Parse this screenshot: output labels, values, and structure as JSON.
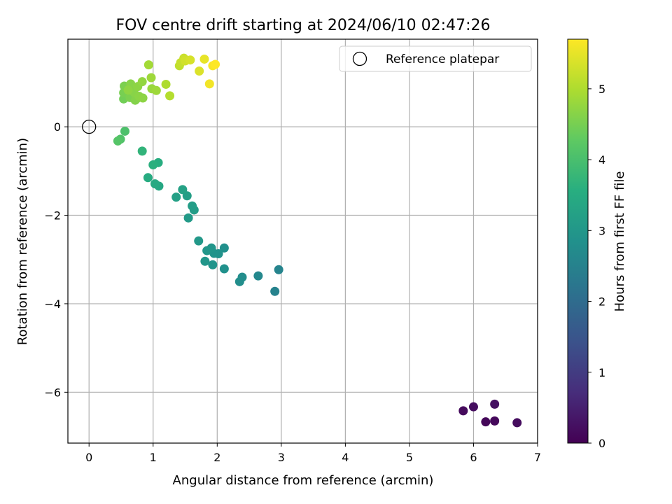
{
  "chart_data": {
    "type": "scatter",
    "title": "FOV centre drift starting at 2024/06/10 02:47:26",
    "xlabel": "Angular distance from reference (arcmin)",
    "ylabel": "Rotation from reference (arcmin)",
    "xlim": [
      -0.33,
      7.0
    ],
    "ylim": [
      -7.15,
      1.98
    ],
    "xticks": [
      0,
      1,
      2,
      3,
      4,
      5,
      6,
      7
    ],
    "yticks": [
      -6,
      -4,
      -2,
      0
    ],
    "xtick_labels": [
      "0",
      "1",
      "2",
      "3",
      "4",
      "5",
      "6",
      "7"
    ],
    "ytick_labels": [
      "−6",
      "−4",
      "−2",
      "0"
    ],
    "grid": true,
    "colormap": "viridis",
    "colorbar": {
      "label": "Hours from first FF file",
      "range": [
        0,
        5.7
      ],
      "ticks": [
        0,
        1,
        2,
        3,
        4,
        5
      ],
      "tick_labels": [
        "0",
        "1",
        "2",
        "3",
        "4",
        "5"
      ]
    },
    "legend": {
      "position": "top-right",
      "entries": [
        {
          "label": "Reference platepar",
          "marker": "open-circle"
        }
      ]
    },
    "reference_point": {
      "x": 0,
      "y": 0
    },
    "points": [
      {
        "x": 5.84,
        "y": -6.42,
        "c": 0.15
      },
      {
        "x": 6.0,
        "y": -6.33,
        "c": 0.2
      },
      {
        "x": 6.33,
        "y": -6.27,
        "c": 0.25
      },
      {
        "x": 6.19,
        "y": -6.67,
        "c": 0.1
      },
      {
        "x": 6.33,
        "y": -6.65,
        "c": 0.12
      },
      {
        "x": 6.68,
        "y": -6.69,
        "c": 0.18
      },
      {
        "x": 2.96,
        "y": -3.23,
        "c": 2.55
      },
      {
        "x": 2.9,
        "y": -3.72,
        "c": 2.5
      },
      {
        "x": 2.64,
        "y": -3.37,
        "c": 2.65
      },
      {
        "x": 2.39,
        "y": -3.4,
        "c": 2.75
      },
      {
        "x": 2.35,
        "y": -3.5,
        "c": 2.78
      },
      {
        "x": 2.11,
        "y": -2.74,
        "c": 2.82
      },
      {
        "x": 2.11,
        "y": -3.21,
        "c": 2.85
      },
      {
        "x": 2.02,
        "y": -2.87,
        "c": 2.88
      },
      {
        "x": 1.95,
        "y": -2.86,
        "c": 2.9
      },
      {
        "x": 1.93,
        "y": -3.12,
        "c": 2.92
      },
      {
        "x": 1.91,
        "y": -2.74,
        "c": 2.95
      },
      {
        "x": 1.84,
        "y": -2.8,
        "c": 2.97
      },
      {
        "x": 1.81,
        "y": -3.04,
        "c": 2.98
      },
      {
        "x": 1.71,
        "y": -2.58,
        "c": 3.02
      },
      {
        "x": 1.55,
        "y": -2.06,
        "c": 3.08
      },
      {
        "x": 1.64,
        "y": -1.88,
        "c": 3.12
      },
      {
        "x": 1.61,
        "y": -1.79,
        "c": 3.15
      },
      {
        "x": 1.53,
        "y": -1.56,
        "c": 3.18
      },
      {
        "x": 1.36,
        "y": -1.59,
        "c": 3.22
      },
      {
        "x": 1.46,
        "y": -1.42,
        "c": 3.25
      },
      {
        "x": 1.09,
        "y": -1.34,
        "c": 3.4
      },
      {
        "x": 1.03,
        "y": -1.29,
        "c": 3.45
      },
      {
        "x": 0.92,
        "y": -1.15,
        "c": 3.5
      },
      {
        "x": 1.08,
        "y": -0.81,
        "c": 3.55
      },
      {
        "x": 1.0,
        "y": -0.86,
        "c": 3.6
      },
      {
        "x": 0.83,
        "y": -0.55,
        "c": 3.7
      },
      {
        "x": 0.56,
        "y": -0.1,
        "c": 4.05
      },
      {
        "x": 0.49,
        "y": -0.28,
        "c": 4.1
      },
      {
        "x": 0.45,
        "y": -0.32,
        "c": 4.15
      },
      {
        "x": 0.54,
        "y": 0.63,
        "c": 4.45
      },
      {
        "x": 0.54,
        "y": 0.77,
        "c": 4.5
      },
      {
        "x": 0.55,
        "y": 0.92,
        "c": 4.55
      },
      {
        "x": 0.64,
        "y": 0.66,
        "c": 4.55
      },
      {
        "x": 0.68,
        "y": 0.85,
        "c": 4.6
      },
      {
        "x": 0.72,
        "y": 0.6,
        "c": 4.6
      },
      {
        "x": 0.74,
        "y": 0.63,
        "c": 4.62
      },
      {
        "x": 0.65,
        "y": 0.97,
        "c": 4.65
      },
      {
        "x": 0.7,
        "y": 0.78,
        "c": 4.65
      },
      {
        "x": 0.78,
        "y": 0.69,
        "c": 4.68
      },
      {
        "x": 0.84,
        "y": 0.65,
        "c": 4.7
      },
      {
        "x": 0.76,
        "y": 0.91,
        "c": 4.7
      },
      {
        "x": 0.61,
        "y": 0.83,
        "c": 4.72
      },
      {
        "x": 0.83,
        "y": 1.02,
        "c": 4.75
      },
      {
        "x": 0.98,
        "y": 0.86,
        "c": 4.8
      },
      {
        "x": 1.05,
        "y": 0.82,
        "c": 4.85
      },
      {
        "x": 0.97,
        "y": 1.11,
        "c": 4.85
      },
      {
        "x": 0.93,
        "y": 1.4,
        "c": 4.9
      },
      {
        "x": 1.2,
        "y": 0.96,
        "c": 5.0
      },
      {
        "x": 1.26,
        "y": 0.7,
        "c": 5.05
      },
      {
        "x": 1.41,
        "y": 1.38,
        "c": 5.15
      },
      {
        "x": 1.43,
        "y": 1.45,
        "c": 5.2
      },
      {
        "x": 1.48,
        "y": 1.55,
        "c": 5.25
      },
      {
        "x": 1.5,
        "y": 1.49,
        "c": 5.3
      },
      {
        "x": 1.58,
        "y": 1.51,
        "c": 5.35
      },
      {
        "x": 1.72,
        "y": 1.26,
        "c": 5.4
      },
      {
        "x": 1.8,
        "y": 1.53,
        "c": 5.5
      },
      {
        "x": 1.88,
        "y": 0.97,
        "c": 5.6
      },
      {
        "x": 1.93,
        "y": 1.38,
        "c": 5.65
      },
      {
        "x": 1.97,
        "y": 1.41,
        "c": 5.7
      }
    ]
  }
}
